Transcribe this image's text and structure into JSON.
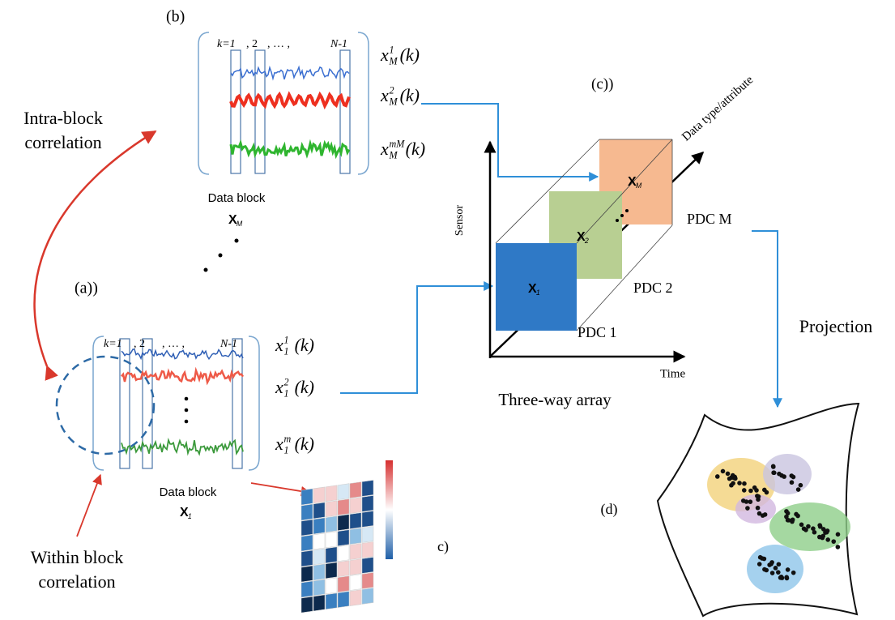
{
  "panel_b": {
    "label": "(b)",
    "index_header": [
      "k=1",
      ", 2",
      ", … ,",
      "N-1"
    ],
    "signals": [
      {
        "base": "x",
        "sup": "1",
        "sub": "M",
        "arg": "(k)"
      },
      {
        "base": "x",
        "sup": "2",
        "sub": "M",
        "arg": "(k)"
      },
      {
        "base": "x",
        "sup": "mM",
        "sub": "M",
        "arg": "(k)"
      }
    ],
    "caption": "Data block",
    "block_name": {
      "base": "X",
      "sub": "M"
    }
  },
  "panel_a": {
    "label": "(a))",
    "index_header": [
      "k=1",
      ", 2",
      ", … ,",
      "N-1"
    ],
    "signals": [
      {
        "base": "x",
        "sup": "1",
        "sub": "1",
        "arg": "(k)"
      },
      {
        "base": "x",
        "sup": "2",
        "sub": "1",
        "arg": "(k)"
      },
      {
        "base": "x",
        "sup": "m",
        "sub": "1",
        "arg": "(k)"
      }
    ],
    "caption": "Data block",
    "block_name": {
      "base": "X",
      "sub": "1"
    }
  },
  "intra_block_label": [
    "Intra-block",
    "correlation"
  ],
  "within_block_label": [
    "Within block",
    "correlation"
  ],
  "heatmap_label": "c)",
  "three_way": {
    "label": "(c))",
    "axes": {
      "sensor": "Sensor",
      "time": "Time",
      "attribute": "Data type/attribute"
    },
    "blocks": [
      {
        "name": {
          "base": "X",
          "sub": "1"
        },
        "pdc": "PDC 1"
      },
      {
        "name": {
          "base": "X",
          "sub": "2"
        },
        "pdc": "PDC 2"
      },
      {
        "name": {
          "base": "X",
          "sub": "M"
        },
        "pdc": "PDC M"
      }
    ],
    "caption": "Three-way array"
  },
  "projection_label": "Projection",
  "panel_d_label": "(d)"
}
